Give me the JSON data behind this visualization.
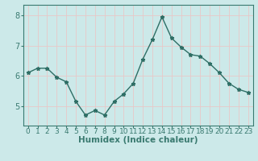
{
  "x": [
    0,
    1,
    2,
    3,
    4,
    5,
    6,
    7,
    8,
    9,
    10,
    11,
    12,
    13,
    14,
    15,
    16,
    17,
    18,
    19,
    20,
    21,
    22,
    23
  ],
  "y": [
    6.1,
    6.25,
    6.25,
    5.95,
    5.8,
    5.15,
    4.7,
    4.85,
    4.7,
    5.15,
    5.4,
    5.75,
    6.55,
    7.2,
    7.95,
    7.25,
    6.95,
    6.7,
    6.65,
    6.4,
    6.1,
    5.75,
    5.55,
    5.45
  ],
  "line_color": "#2e6e65",
  "marker": "*",
  "marker_size": 3.5,
  "bg_color": "#cce9e9",
  "grid_color": "#e8c8c8",
  "xlabel": "Humidex (Indice chaleur)",
  "xlabel_fontsize": 7.5,
  "tick_fontsize": 6.5,
  "ytick_fontsize": 7,
  "yticks": [
    5,
    6,
    7,
    8
  ],
  "ylim": [
    4.35,
    8.35
  ],
  "xlim": [
    -0.5,
    23.5
  ],
  "line_width": 1.0,
  "spine_color": "#3a7a70"
}
